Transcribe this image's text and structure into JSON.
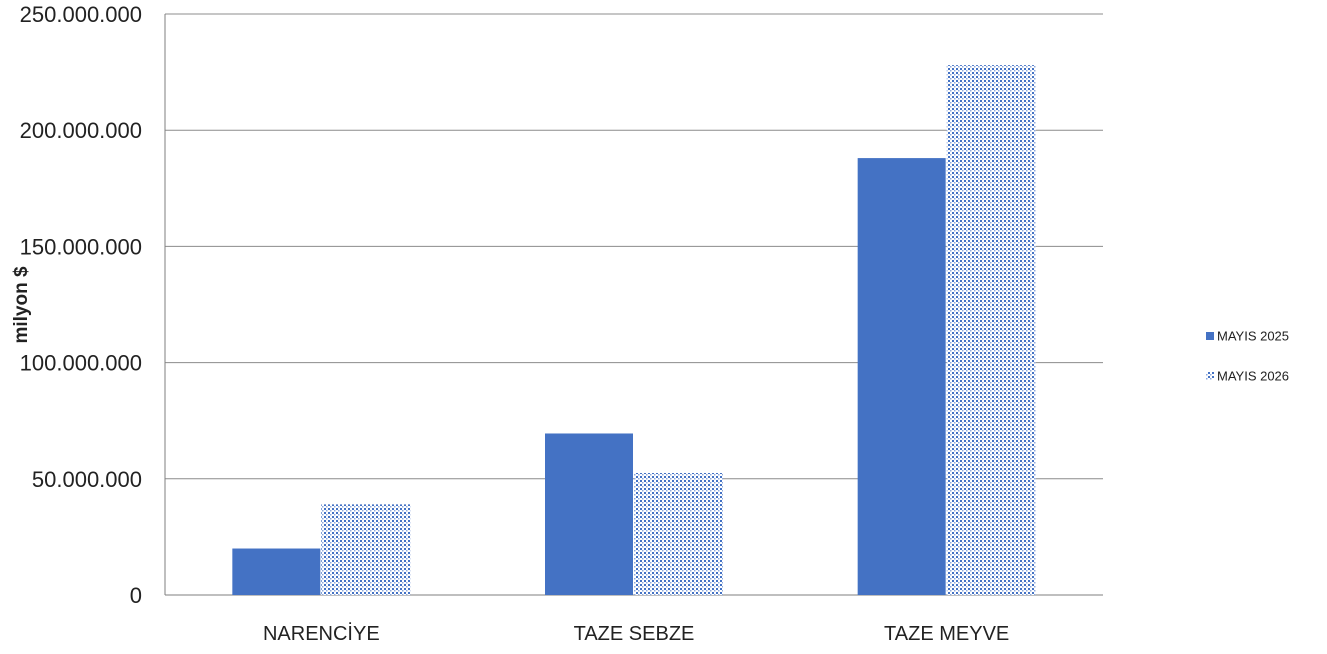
{
  "chart_data": {
    "type": "bar",
    "title": "",
    "xlabel": "",
    "ylabel": "milyon $",
    "categories": [
      "NARENCİYE",
      "TAZE SEBZE",
      "TAZE MEYVE"
    ],
    "series": [
      {
        "name": "MAYIS 2025",
        "values": [
          20000000,
          69500000,
          188000000
        ],
        "color": "#4472C4",
        "fill": "solid"
      },
      {
        "name": "MAYIS 2026",
        "values": [
          39000000,
          52500000,
          228000000
        ],
        "color": "#4472C4",
        "fill": "dotted"
      }
    ],
    "ylim": [
      0,
      250000000
    ],
    "yticks": [
      "0",
      "50.000.000",
      "100.000.000",
      "150.000.000",
      "200.000.000",
      "250.000.000"
    ],
    "grid": true,
    "legend_position": "right"
  }
}
